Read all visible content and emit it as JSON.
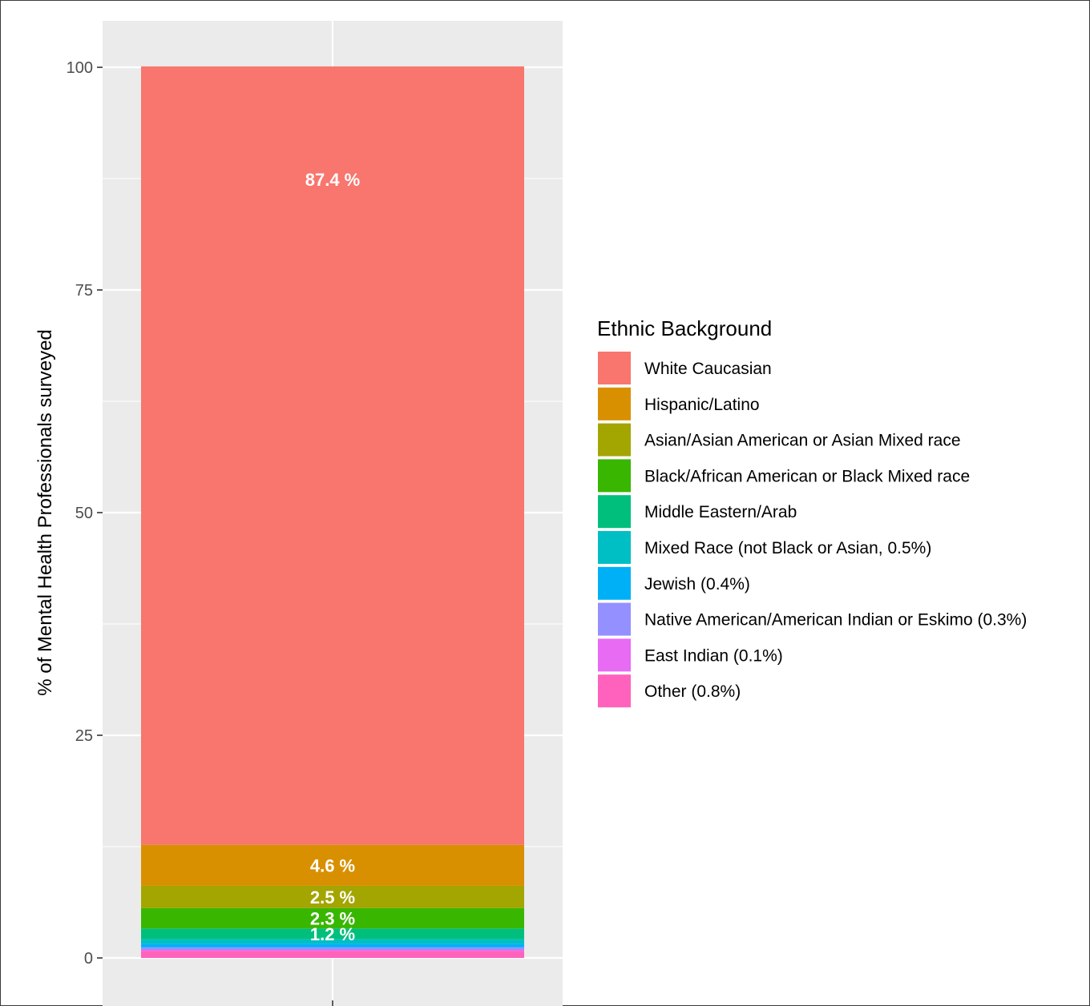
{
  "chart_data": {
    "type": "bar",
    "stacked": true,
    "categories": [
      ""
    ],
    "ylabel": "% of Mental Health Professionals surveyed",
    "ylim": [
      0,
      100
    ],
    "yticks": [
      0,
      25,
      50,
      75,
      100
    ],
    "grid": true,
    "legend": {
      "title": "Ethnic Background",
      "position": "right"
    },
    "series": [
      {
        "name": "White Caucasian",
        "value": 87.4,
        "color": "#F8766D",
        "label": "87.4 %"
      },
      {
        "name": "Hispanic/Latino",
        "value": 4.6,
        "color": "#D89000",
        "label": "4.6 %"
      },
      {
        "name": "Asian/Asian American or Asian Mixed race",
        "value": 2.5,
        "color": "#A3A500",
        "label": "2.5 %"
      },
      {
        "name": "Black/African American or Black Mixed race",
        "value": 2.3,
        "color": "#39B600",
        "label": "2.3 %"
      },
      {
        "name": "Middle Eastern/Arab",
        "value": 1.2,
        "color": "#00BF7D",
        "label": "1.2 %"
      },
      {
        "name": "Mixed Race (not Black or Asian, 0.5%)",
        "value": 0.5,
        "color": "#00BFC4",
        "label": ""
      },
      {
        "name": "Jewish (0.4%)",
        "value": 0.4,
        "color": "#00B0F6",
        "label": ""
      },
      {
        "name": "Native American/American Indian or Eskimo (0.3%)",
        "value": 0.3,
        "color": "#9590FF",
        "label": ""
      },
      {
        "name": "East Indian (0.1%)",
        "value": 0.1,
        "color": "#E76BF3",
        "label": ""
      },
      {
        "name": "Other (0.8%)",
        "value": 0.8,
        "color": "#FF62BC",
        "label": ""
      }
    ]
  }
}
